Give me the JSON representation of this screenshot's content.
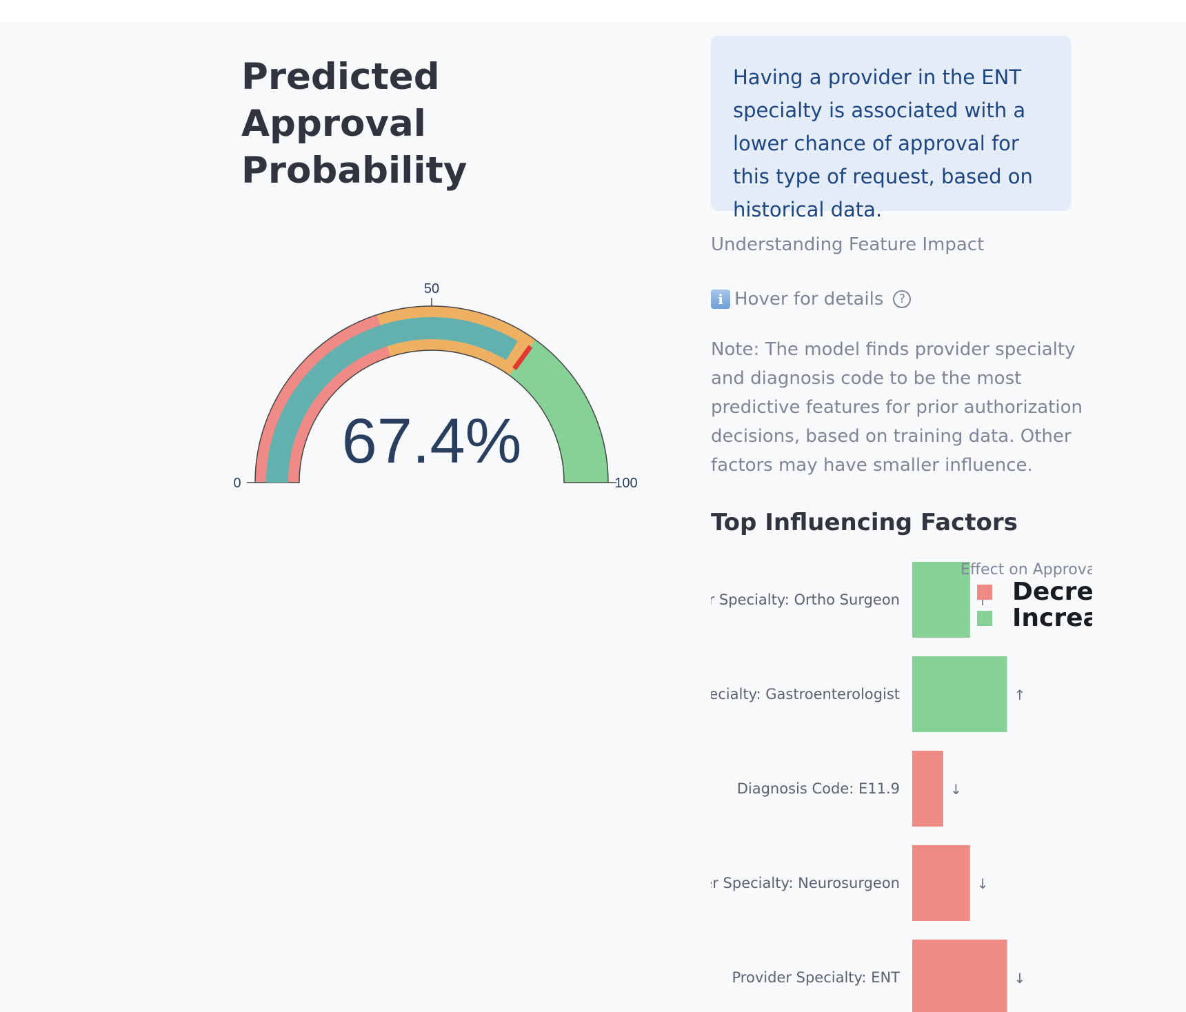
{
  "page": {
    "title": "Predicted Approval Probability"
  },
  "gauge": {
    "value": 67.4,
    "value_label": "67.4%",
    "min": 0,
    "max": 100,
    "min_label": "0",
    "mid_label": "50",
    "max_label": "100",
    "threshold": 70,
    "steps": [
      {
        "from": 0,
        "to": 40,
        "color": "#ef8a87"
      },
      {
        "from": 40,
        "to": 70,
        "color": "#eeb063"
      },
      {
        "from": 70,
        "to": 100,
        "color": "#86d296"
      }
    ],
    "bar_color": "#63b1ae",
    "threshold_color": "#e3372f"
  },
  "insight": {
    "text": "Having a provider in the ENT specialty is associated with a lower chance of approval for this type of request, based on historical data."
  },
  "feature_impact": {
    "heading": "Understanding Feature Impact",
    "hover_label": "Hover for details",
    "info_icon": "info-icon",
    "help_icon": "help-circle-icon",
    "note": "Note: The model finds provider specialty and diagnosis code to be the most predictive features for prior authorization decisions, based on training data. Other factors may have smaller influence."
  },
  "factors": {
    "heading": "Top Influencing Factors"
  },
  "chart_data": {
    "type": "bar",
    "orientation": "horizontal",
    "categories": [
      "Provider Specialty: Ortho Surgeon",
      "Provider Specialty: Gastroenterologist",
      "Diagnosis Code: E11.9",
      "Provider Specialty: Neurosurgeon",
      "Provider Specialty: ENT"
    ],
    "values": [
      0.67,
      1.1,
      0.36,
      0.67,
      1.1
    ],
    "effects": [
      "Increases",
      "Increases",
      "Decreases",
      "Decreases",
      "Decreases"
    ],
    "arrows": [
      "↑",
      "↑",
      "↓",
      "↓",
      "↓"
    ],
    "xlim": [
      0,
      2.4
    ],
    "legend": {
      "title": "Effect on Approval",
      "placement": "top-right",
      "items": [
        {
          "label": "Decreases",
          "color": "#ef8a87"
        },
        {
          "label": "Increases",
          "color": "#86d296"
        }
      ]
    },
    "colors": {
      "Decreases": "#ef8a87",
      "Increases": "#86d296"
    }
  }
}
